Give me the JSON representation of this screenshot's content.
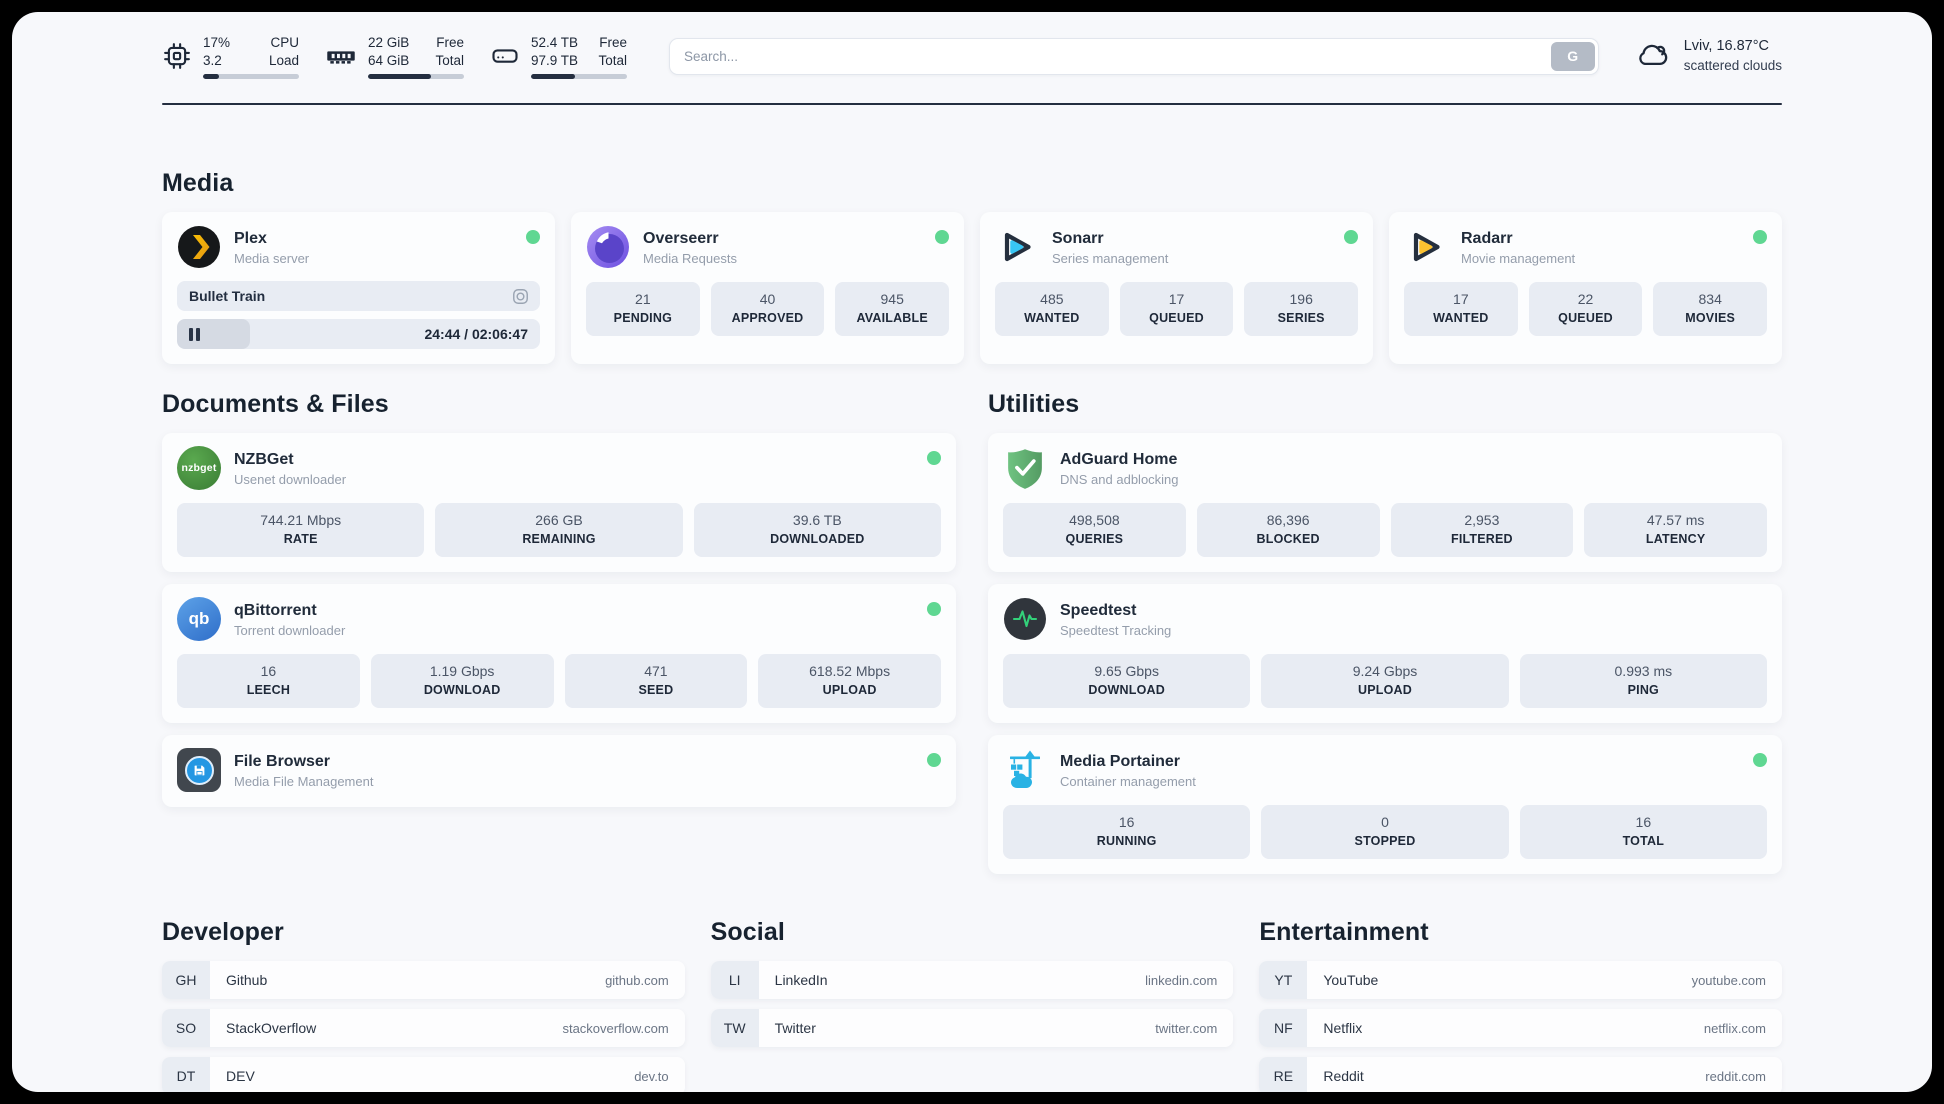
{
  "colors": {
    "status_online": "#5fd792",
    "accent_dark": "#242e40",
    "plex_gold": "#f0b000",
    "sonarr_cyan": "#38c6f4",
    "radarr_yellow": "#fcc230",
    "nzbget_green": "#3a7c34",
    "qbittorrent_blue": "#2f6ec9",
    "adguard_green": "#69bd7b",
    "speedtest_pulse": "#33d17a",
    "portainer_blue": "#29b2e4"
  },
  "topbar": {
    "cpu": {
      "values": [
        "17%",
        "3.2"
      ],
      "labels": [
        "CPU",
        "Load"
      ],
      "usage_pct": 17
    },
    "ram": {
      "values": [
        "22 GiB",
        "64 GiB"
      ],
      "labels": [
        "Free",
        "Total"
      ],
      "usage_pct": 66
    },
    "disk": {
      "values": [
        "52.4 TB",
        "97.9 TB"
      ],
      "labels": [
        "Free",
        "Total"
      ],
      "usage_pct": 46
    },
    "search": {
      "placeholder": "Search...",
      "button": "G"
    },
    "weather": {
      "headline": "Lviv, 16.87°C",
      "condition": "scattered clouds"
    }
  },
  "sections": {
    "media": {
      "title": "Media"
    },
    "documents": {
      "title": "Documents & Files"
    },
    "utilities": {
      "title": "Utilities"
    },
    "developer": {
      "title": "Developer"
    },
    "social": {
      "title": "Social"
    },
    "entertainment": {
      "title": "Entertainment"
    }
  },
  "apps": {
    "plex": {
      "name": "Plex",
      "description": "Media server",
      "now_playing": {
        "title": "Bullet Train",
        "time": "24:44 / 02:06:47",
        "progress_pct": 20,
        "state": "paused"
      }
    },
    "overseerr": {
      "name": "Overseerr",
      "description": "Media Requests",
      "stats": [
        {
          "value": "21",
          "label": "PENDING"
        },
        {
          "value": "40",
          "label": "APPROVED"
        },
        {
          "value": "945",
          "label": "AVAILABLE"
        }
      ]
    },
    "sonarr": {
      "name": "Sonarr",
      "description": "Series management",
      "stats": [
        {
          "value": "485",
          "label": "WANTED"
        },
        {
          "value": "17",
          "label": "QUEUED"
        },
        {
          "value": "196",
          "label": "SERIES"
        }
      ]
    },
    "radarr": {
      "name": "Radarr",
      "description": "Movie management",
      "stats": [
        {
          "value": "17",
          "label": "WANTED"
        },
        {
          "value": "22",
          "label": "QUEUED"
        },
        {
          "value": "834",
          "label": "MOVIES"
        }
      ]
    },
    "nzbget": {
      "name": "NZBGet",
      "description": "Usenet downloader",
      "stats": [
        {
          "value": "744.21 Mbps",
          "label": "RATE"
        },
        {
          "value": "266 GB",
          "label": "REMAINING"
        },
        {
          "value": "39.6 TB",
          "label": "DOWNLOADED"
        }
      ]
    },
    "qbittorrent": {
      "name": "qBittorrent",
      "description": "Torrent downloader",
      "stats": [
        {
          "value": "16",
          "label": "LEECH"
        },
        {
          "value": "1.19 Gbps",
          "label": "DOWNLOAD"
        },
        {
          "value": "471",
          "label": "SEED"
        },
        {
          "value": "618.52 Mbps",
          "label": "UPLOAD"
        }
      ]
    },
    "filebrowser": {
      "name": "File Browser",
      "description": "Media File Management"
    },
    "adguard": {
      "name": "AdGuard Home",
      "description": "DNS and adblocking",
      "stats": [
        {
          "value": "498,508",
          "label": "QUERIES"
        },
        {
          "value": "86,396",
          "label": "BLOCKED"
        },
        {
          "value": "2,953",
          "label": "FILTERED"
        },
        {
          "value": "47.57 ms",
          "label": "LATENCY"
        }
      ]
    },
    "speedtest": {
      "name": "Speedtest",
      "description": "Speedtest Tracking",
      "stats": [
        {
          "value": "9.65 Gbps",
          "label": "DOWNLOAD"
        },
        {
          "value": "9.24 Gbps",
          "label": "UPLOAD"
        },
        {
          "value": "0.993 ms",
          "label": "PING"
        }
      ]
    },
    "portainer": {
      "name": "Media Portainer",
      "description": "Container management",
      "stats": [
        {
          "value": "16",
          "label": "RUNNING"
        },
        {
          "value": "0",
          "label": "STOPPED"
        },
        {
          "value": "16",
          "label": "TOTAL"
        }
      ]
    }
  },
  "bookmarks": {
    "developer": [
      {
        "tag": "GH",
        "name": "Github",
        "url": "github.com"
      },
      {
        "tag": "SO",
        "name": "StackOverflow",
        "url": "stackoverflow.com"
      },
      {
        "tag": "DT",
        "name": "DEV",
        "url": "dev.to"
      }
    ],
    "social": [
      {
        "tag": "LI",
        "name": "LinkedIn",
        "url": "linkedin.com"
      },
      {
        "tag": "TW",
        "name": "Twitter",
        "url": "twitter.com"
      }
    ],
    "entertainment": [
      {
        "tag": "YT",
        "name": "YouTube",
        "url": "youtube.com"
      },
      {
        "tag": "NF",
        "name": "Netflix",
        "url": "netflix.com"
      },
      {
        "tag": "RE",
        "name": "Reddit",
        "url": "reddit.com"
      }
    ]
  }
}
